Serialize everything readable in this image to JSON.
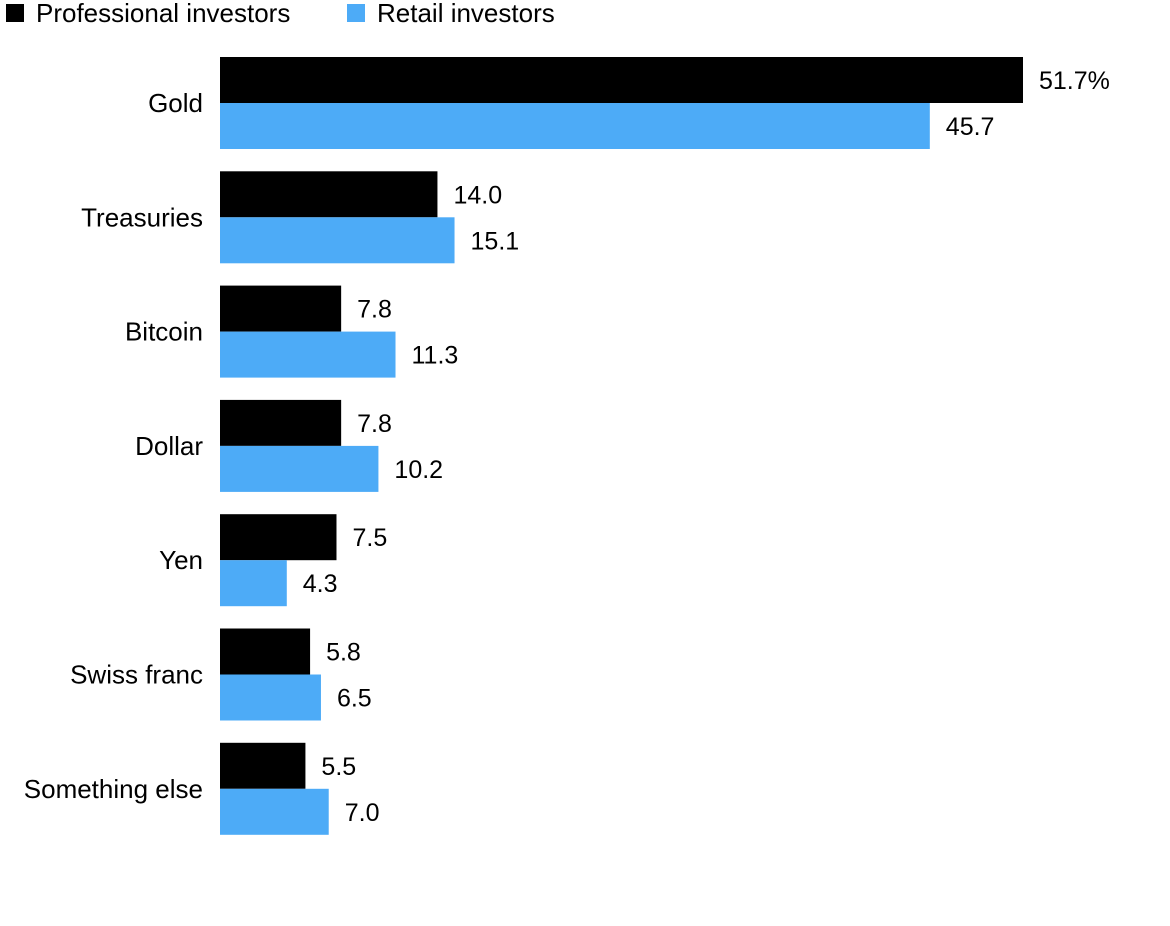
{
  "chart_data": {
    "type": "bar",
    "orientation": "horizontal",
    "categories": [
      "Gold",
      "Treasuries",
      "Bitcoin",
      "Dollar",
      "Yen",
      "Swiss franc",
      "Something else"
    ],
    "series": [
      {
        "name": "Professional investors",
        "color": "#000000",
        "values": [
          51.7,
          14.0,
          7.8,
          7.8,
          7.5,
          5.8,
          5.5
        ],
        "labels": [
          "51.7%",
          "14.0",
          "7.8",
          "7.8",
          "7.5",
          "5.8",
          "5.5"
        ]
      },
      {
        "name": "Retail investors",
        "color": "#4dabf7",
        "values": [
          45.7,
          15.1,
          11.3,
          10.2,
          4.3,
          6.5,
          7.0
        ],
        "labels": [
          "45.7",
          "15.1",
          "11.3",
          "10.2",
          "4.3",
          "6.5",
          "7.0"
        ]
      }
    ],
    "title": "",
    "xlabel": "",
    "ylabel": "",
    "xlim": [
      0,
      51.7
    ],
    "grid": false,
    "legend_position": "top-left"
  }
}
